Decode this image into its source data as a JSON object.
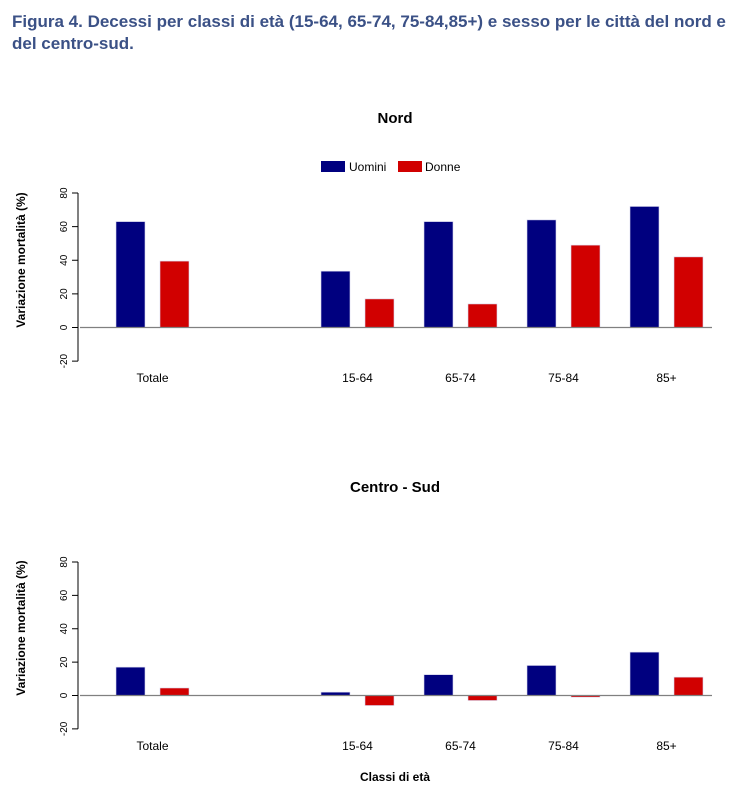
{
  "figure": {
    "title": "Figura 4. Decessi per classi di età (15-64, 65-74, 75-84,85+) e sesso per le città del nord e del centro-sud."
  },
  "colors": {
    "uomini": "#00007f",
    "donne": "#d10000",
    "title": "#3b5186"
  },
  "chart_data": [
    {
      "type": "bar",
      "title": "Nord",
      "categories": [
        "Totale",
        "15-64",
        "65-74",
        "75-84",
        "85+"
      ],
      "series": [
        {
          "name": "Uomini",
          "values": [
            63,
            33.5,
            63,
            64,
            72
          ]
        },
        {
          "name": "Donne",
          "values": [
            39.5,
            17,
            14,
            49,
            42
          ]
        }
      ],
      "xlabel": "",
      "ylabel": "Variazione mortalità (%)",
      "ylim": [
        -20,
        80
      ],
      "yticks": [
        "-20",
        "0",
        "20",
        "40",
        "60",
        "80"
      ],
      "legend": "top-center",
      "grid": false
    },
    {
      "type": "bar",
      "title": "Centro - Sud",
      "categories": [
        "Totale",
        "15-64",
        "65-74",
        "75-84",
        "85+"
      ],
      "series": [
        {
          "name": "Uomini",
          "values": [
            17,
            2,
            12.5,
            18,
            26
          ]
        },
        {
          "name": "Donne",
          "values": [
            4.5,
            -6,
            -3,
            -1,
            11
          ]
        }
      ],
      "xlabel": "Classi di età",
      "ylabel": "Variazione mortalità (%)",
      "ylim": [
        -20,
        80
      ],
      "yticks": [
        "-20",
        "0",
        "20",
        "40",
        "60",
        "80"
      ],
      "legend": "none",
      "grid": false
    }
  ]
}
